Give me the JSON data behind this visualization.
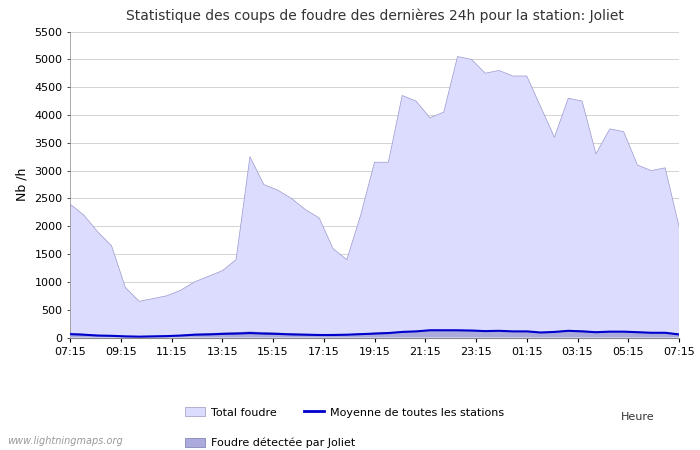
{
  "title": "Statistique des coups de foudre des dernières 24h pour la station: Joliet",
  "ylabel": "Nb /h",
  "xlabel": "Heure",
  "watermark": "www.lightningmaps.org",
  "ylim": [
    0,
    5500
  ],
  "yticks": [
    0,
    500,
    1000,
    1500,
    2000,
    2500,
    3000,
    3500,
    4000,
    4500,
    5000,
    5500
  ],
  "x_labels": [
    "07:15",
    "09:15",
    "11:15",
    "13:15",
    "15:15",
    "17:15",
    "19:15",
    "21:15",
    "23:15",
    "01:15",
    "03:15",
    "05:15",
    "07:15"
  ],
  "total_foudre_color": "#dcdcff",
  "joliet_color": "#aaaadd",
  "moyenne_color": "#0000cc",
  "background_color": "#ffffff",
  "grid_color": "#cccccc",
  "total_foudre": [
    2400,
    2200,
    1900,
    1650,
    900,
    650,
    700,
    750,
    850,
    1000,
    1100,
    1200,
    1400,
    3250,
    2750,
    2650,
    2500,
    2300,
    2150,
    1600,
    1400,
    2200,
    3150,
    3150,
    4350,
    4250,
    3950,
    4050,
    5050,
    5000,
    4750,
    4800,
    4700,
    4700,
    4150,
    3600,
    4300,
    4250,
    3300,
    3750,
    3700,
    3100,
    3000,
    3050,
    2000
  ],
  "joliet": [
    80,
    60,
    40,
    30,
    25,
    20,
    25,
    30,
    40,
    60,
    70,
    80,
    90,
    100,
    90,
    80,
    70,
    60,
    55,
    50,
    55,
    65,
    80,
    90,
    100,
    110,
    130,
    130,
    120,
    115,
    110,
    120,
    110,
    110,
    90,
    100,
    130,
    120,
    100,
    110,
    110,
    100,
    90,
    90,
    60
  ],
  "moyenne": [
    60,
    50,
    35,
    30,
    20,
    15,
    20,
    25,
    35,
    50,
    55,
    65,
    70,
    80,
    70,
    65,
    55,
    50,
    45,
    45,
    50,
    60,
    70,
    80,
    100,
    110,
    130,
    130,
    130,
    125,
    115,
    120,
    110,
    110,
    90,
    100,
    120,
    110,
    95,
    105,
    105,
    95,
    85,
    85,
    55
  ],
  "legend_items": [
    {
      "type": "patch",
      "color": "#dcdcff",
      "label": "Total foudre"
    },
    {
      "type": "line",
      "color": "#0000cc",
      "label": "Moyenne de toutes les stations"
    },
    {
      "type": "patch",
      "color": "#aaaadd",
      "label": "Foudre détectée par Joliet"
    }
  ]
}
